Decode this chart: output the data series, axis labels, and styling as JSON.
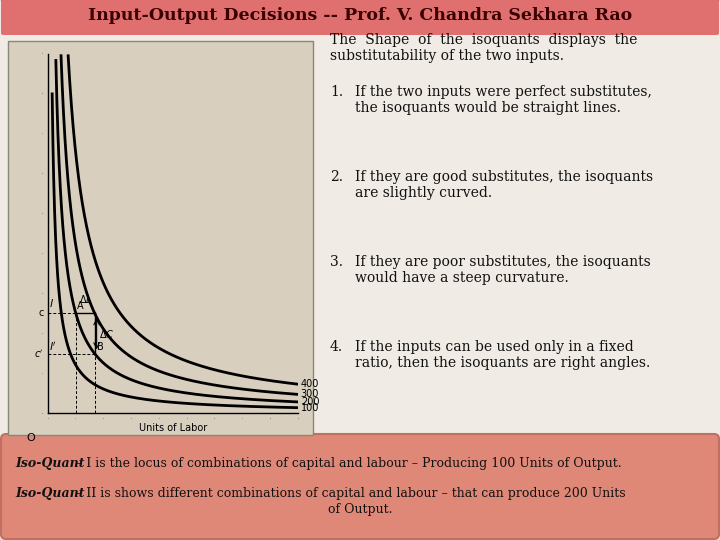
{
  "title": "Input-Output Decisions -- Prof. V. Chandra Sekhara Rao",
  "title_bg_color": "#e07070",
  "title_text_color": "#3a0000",
  "fig_bg_color": "#f0ebe4",
  "graph_bg_color": "#d8cfbf",
  "border_color": "#c07060",
  "bottom_box_color": "#e08878",
  "curve_labels": [
    "100",
    "200",
    "300",
    "400"
  ],
  "curve_ks": [
    1.2,
    2.5,
    4.2,
    6.5
  ],
  "intro_text_line1": "The  Shape  of  the  isoquants  displays  the",
  "intro_text_line2": "substitutability of the two inputs.",
  "point1_num": "1.",
  "point1_line1": "If the two inputs were perfect substitutes,",
  "point1_line2": "the isoquants would be straight lines.",
  "point2_num": "2.",
  "point2_line1": "If they are good substitutes, the isoquants",
  "point2_line2": "are slightly curved.",
  "point3_num": "3.",
  "point3_line1": "If they are poor substitutes, the isoquants",
  "point3_line2": "would have a steep curvature.",
  "point4_num": "4.",
  "point4_line1": "If the inputs can be used only in a fixed",
  "point4_line2": "ratio, then the isoquants are right angles.",
  "bottom_text1_bold": "Iso-Quant",
  "bottom_text1_rest": " – I is the locus of combinations of capital and labour – Producing 100 Units of Output.",
  "bottom_text2_bold": "Iso-Quant",
  "bottom_text2_rest": " – II is shows different combinations of capital and labour – that can produce 200 Units",
  "bottom_text2_line2": "of Output.",
  "xA": 1.0,
  "xB": 1.7,
  "curve_k_for_step": 2.5,
  "xlim": [
    0,
    9
  ],
  "ylim": [
    0,
    9
  ]
}
